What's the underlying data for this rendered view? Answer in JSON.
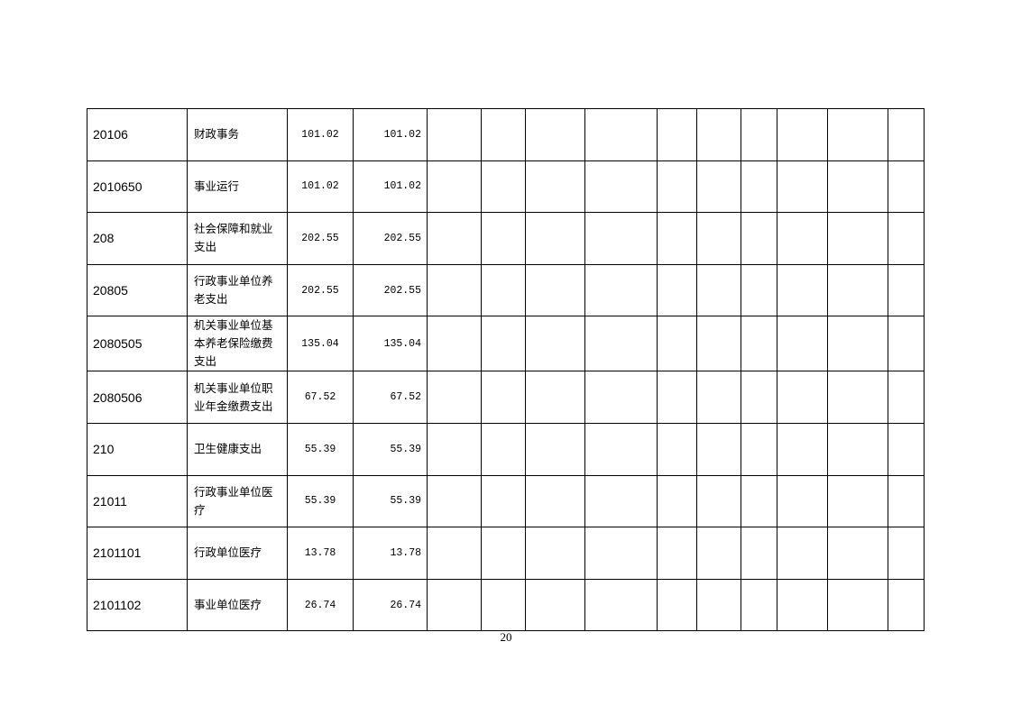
{
  "table": {
    "rows": [
      {
        "code": "20106",
        "name": "财政事务",
        "total": "101.02",
        "basic": "101.02"
      },
      {
        "code": "2010650",
        "name": "事业运行",
        "total": "101.02",
        "basic": "101.02"
      },
      {
        "code": "208",
        "name": "社会保障和就业支出",
        "total": "202.55",
        "basic": "202.55"
      },
      {
        "code": "20805",
        "name": "行政事业单位养老支出",
        "total": "202.55",
        "basic": "202.55"
      },
      {
        "code": "2080505",
        "name": "机关事业单位基本养老保险缴费支出",
        "total": "135.04",
        "basic": "135.04"
      },
      {
        "code": "2080506",
        "name": "机关事业单位职业年金缴费支出",
        "total": "67.52",
        "basic": "67.52"
      },
      {
        "code": "210",
        "name": "卫生健康支出",
        "total": "55.39",
        "basic": "55.39"
      },
      {
        "code": "21011",
        "name": "行政事业单位医疗",
        "total": "55.39",
        "basic": "55.39"
      },
      {
        "code": "2101101",
        "name": "行政单位医疗",
        "total": "13.78",
        "basic": "13.78"
      },
      {
        "code": "2101102",
        "name": "事业单位医疗",
        "total": "26.74",
        "basic": "26.74"
      }
    ]
  },
  "footer": {
    "page_number": "20"
  }
}
